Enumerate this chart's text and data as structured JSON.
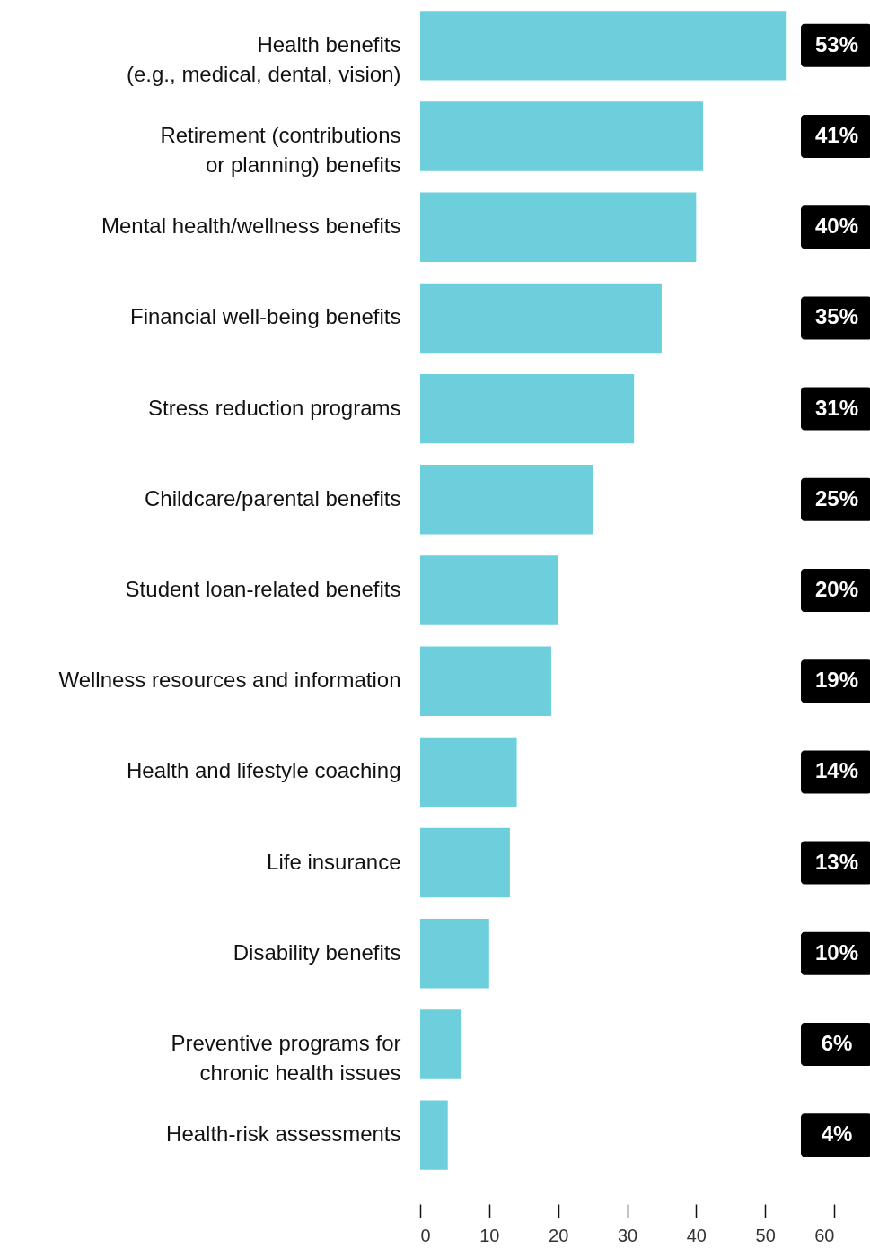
{
  "chart_data": {
    "type": "bar",
    "orientation": "horizontal",
    "categories": [
      "Health benefits\n(e.g., medical, dental, vision)",
      "Retirement (contributions\nor planning) benefits",
      "Mental health/wellness benefits",
      "Financial well-being benefits",
      "Stress reduction programs",
      "Childcare/parental benefits",
      "Student loan-related benefits",
      "Wellness resources and information",
      "Health and lifestyle coaching",
      "Life insurance",
      "Disability benefits",
      "Preventive programs for\nchronic health issues",
      "Health-risk assessments"
    ],
    "values": [
      53,
      41,
      40,
      35,
      31,
      25,
      20,
      19,
      14,
      13,
      10,
      6,
      4
    ],
    "value_labels": [
      "53%",
      "41%",
      "40%",
      "35%",
      "31%",
      "25%",
      "20%",
      "19%",
      "14%",
      "13%",
      "10%",
      "6%",
      "4%"
    ],
    "color": "#6dcfdc",
    "xlim": [
      0,
      60
    ],
    "xticks": [
      0,
      10,
      20,
      30,
      40,
      50,
      60
    ]
  }
}
